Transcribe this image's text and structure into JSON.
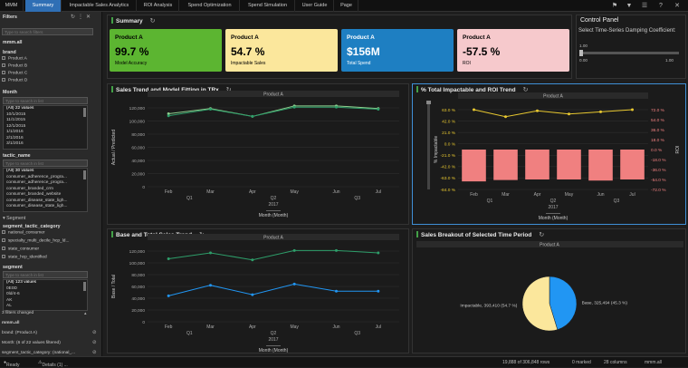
{
  "topbar": {
    "tabs": [
      "MMM",
      "Summary",
      "Impactable Sales Analytics",
      "ROI Analysis",
      "Spend Optimization",
      "Spend Simulation",
      "User Guide",
      "Page"
    ],
    "active_tab": "Summary"
  },
  "sidebar": {
    "header": "Filters",
    "search_placeholder": "Type to search filters",
    "table_name": "mmm.all",
    "brand_label": "brand",
    "brand_items": [
      "Product A",
      "Product B",
      "Product C",
      "Product D"
    ],
    "month_label": "Month",
    "list_search_placeholder": "Type to search in list",
    "month_items": [
      "(All) 22 values",
      "10/1/2015",
      "11/1/2015",
      "12/1/2015",
      "1/1/2016",
      "2/1/2016",
      "3/1/2016"
    ],
    "tactic_label": "tactic_name",
    "tactic_items": [
      "(All) 30 values",
      "consumer_adherence_progra...",
      "consumer_adherence_progra...",
      "consumer_branded_crm",
      "consumer_branded_website",
      "consumer_disease_state_ligh...",
      "consumer_disease_state_ligh..."
    ],
    "segment_section": "Segment",
    "seg_tactic_label": "segment_tactic_category",
    "seg_tactic_items": [
      "national_consumer",
      "specialty_multi_decile_hcp_ld...",
      "state_consumer",
      "state_hcp_identified"
    ],
    "segment_label": "segment",
    "segment_items": [
      "(All) 123 values",
      "0E0D",
      "0ld/4-6",
      "AK",
      "AL"
    ],
    "filters_changed": "3 filters changed",
    "changes_table": "mmm.all",
    "changes": [
      "brand: (Product A)",
      "Month: (6 of 22 values filtered)",
      "segment_tactic_category: (national_..."
    ]
  },
  "summary": {
    "title": "Summary",
    "kpis": [
      {
        "product": "Product A",
        "value": "99.7 %",
        "label": "Model Accuracy",
        "color": "#5cb531"
      },
      {
        "product": "Product A",
        "value": "54.7 %",
        "label": "Impactable Sales",
        "color": "#fbe79c"
      },
      {
        "product": "Product A",
        "value": "$156M",
        "label": "Total Spend",
        "color": "#1e7fc2"
      },
      {
        "product": "Product A",
        "value": "-57.5 %",
        "label": "ROI",
        "color": "#f6c9cc"
      }
    ]
  },
  "control_panel": {
    "title": "Control Panel",
    "label": "Select Time-Series Damping Coefficient:",
    "value": "1.00",
    "min": "0.00",
    "max": "1.00"
  },
  "status": {
    "ready": "Ready",
    "details": "Details (1) ...",
    "rows": "19,888 of 306,848 rows",
    "marked": "0 marked",
    "columns": "28 columns",
    "table": "mmm.all"
  },
  "chart_data": [
    {
      "type": "line",
      "title": "Sales Trend and Model Fitting in TRx",
      "trellis": "Product A",
      "xlabel": "Month (Month)",
      "ylabel": "Actual / Predicted",
      "categories": [
        "Feb",
        "Mar",
        "Apr",
        "May",
        "Jun",
        "Jul"
      ],
      "quarters": [
        "Q1",
        "Q2",
        "Q3"
      ],
      "year": "2017",
      "ylim": [
        0,
        120000
      ],
      "ytick_labels": [
        "0",
        "20,000",
        "40,000",
        "60,000",
        "80,000",
        "100,000",
        "120,000"
      ],
      "series": [
        {
          "name": "Actual",
          "color": "#8fd18f",
          "values": [
            111000,
            119000,
            107000,
            123000,
            123000,
            119000
          ]
        },
        {
          "name": "Predicted",
          "color": "#2e9e6a",
          "values": [
            108000,
            118000,
            107000,
            121000,
            121000,
            118000
          ]
        }
      ]
    },
    {
      "type": "bar",
      "title": "% Total Impactable and ROI Trend",
      "trellis": "Product A",
      "xlabel": "Month (Month)",
      "ylabel": "% Impactable",
      "y2label": "ROI",
      "categories": [
        "Feb",
        "Mar",
        "Apr",
        "May",
        "Jun",
        "Jul"
      ],
      "quarters": [
        "Q1",
        "Q2",
        "Q3"
      ],
      "year": "2017",
      "ylim": [
        -84,
        63
      ],
      "ytick_labels": [
        "-84.0 %",
        "-63.0 %",
        "-42.0 %",
        "-21.0 %",
        "0.0 %",
        "21.0 %",
        "42.0 %",
        "63.0 %"
      ],
      "y2lim": [
        -72,
        72
      ],
      "y2tick_labels": [
        "-72.0 %",
        "-54.0 %",
        "-36.0 %",
        "-18.0 %",
        "0.0 %",
        "18.0 %",
        "36.0 %",
        "54.0 %",
        "72.0 %"
      ],
      "series": [
        {
          "name": "% Impactable",
          "color": "#e8c830",
          "values": [
            63,
            50,
            61,
            55,
            59,
            63
          ]
        },
        {
          "name": "ROI",
          "color": "#f08080",
          "values": [
            -57.5,
            -55,
            -54,
            -54,
            -56,
            -54
          ]
        }
      ]
    },
    {
      "type": "line",
      "title": "Base and Total Sales Trend",
      "trellis": "Product A",
      "xlabel": "Month (Month)",
      "ylabel": "Base / Total",
      "categories": [
        "Feb",
        "Mar",
        "Apr",
        "May",
        "Jun",
        "Jul"
      ],
      "quarters": [
        "Q1",
        "Q2",
        "Q3"
      ],
      "year": "2017",
      "ylim": [
        0,
        120000
      ],
      "ytick_labels": [
        "0",
        "20,000",
        "40,000",
        "60,000",
        "80,000",
        "100,000",
        "120,000"
      ],
      "series": [
        {
          "name": "Total",
          "color": "#2e9e6a",
          "values": [
            107000,
            117000,
            105000,
            121000,
            121000,
            117000
          ]
        },
        {
          "name": "Base",
          "color": "#2196f3",
          "values": [
            44000,
            62000,
            46000,
            64000,
            52000,
            52000
          ]
        }
      ]
    },
    {
      "type": "pie",
      "title": "Sales Breakout of Selected Time Period",
      "trellis": "Product A",
      "slices": [
        {
          "name": "Base",
          "value": 325494,
          "pct": 45.3,
          "label": "Base, 325,494 (45.3 %)",
          "color": "#2196f3"
        },
        {
          "name": "Impactable",
          "value": 393410,
          "pct": 54.7,
          "label": "Impactable, 393,410 (54.7 %)",
          "color": "#fbe79c"
        }
      ]
    }
  ]
}
